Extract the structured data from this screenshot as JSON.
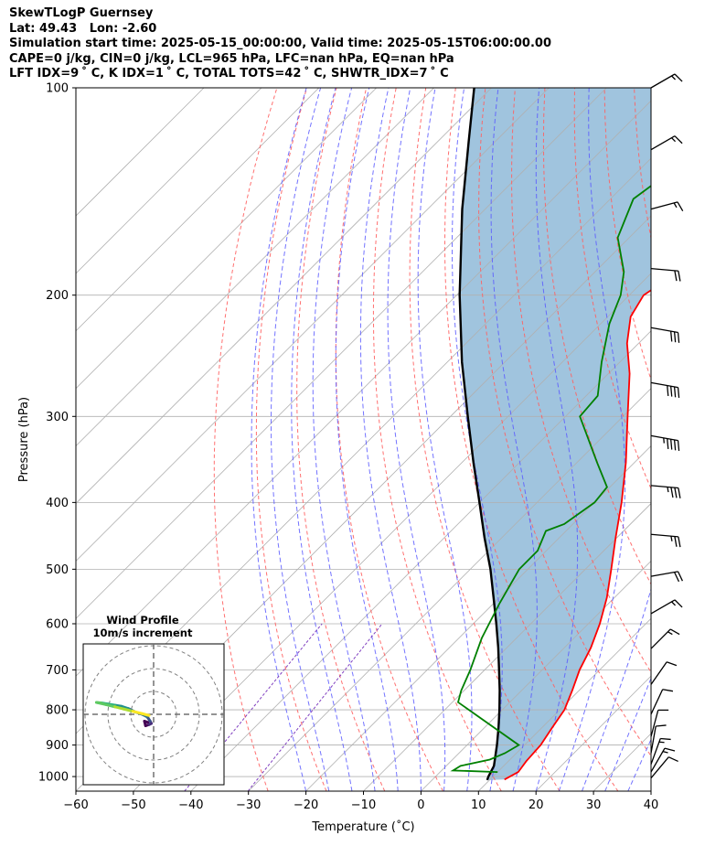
{
  "header": {
    "line1": "SkewTLogP Guernsey",
    "line2": "Lat: 49.43   Lon: -2.60",
    "line3": "Simulation start time: 2025-05-15_00:00:00, Valid time: 2025-05-15T06:00:00.00",
    "line4": "CAPE=0 j/kg, CIN=0 j/kg, LCL=965 hPa, LFC=nan hPa, EQ=nan hPa",
    "line5": "LFT IDX=9 ˚ C, K IDX=1 ˚ C, TOTAL TOTS=42 ˚ C, SHWTR_IDX=7 ˚ C"
  },
  "chart_data": {
    "type": "skew-t log-p",
    "xlabel": "Temperature (˚C)",
    "ylabel": "Pressure (hPa)",
    "x_ticks": [
      -60,
      -50,
      -40,
      -30,
      -20,
      -10,
      0,
      10,
      20,
      30,
      40
    ],
    "x_tick_labels": [
      "−60",
      "−50",
      "−40",
      "−30",
      "−20",
      "−10",
      "0",
      "10",
      "20",
      "30",
      "40"
    ],
    "y_ticks": [
      100,
      200,
      300,
      400,
      500,
      600,
      700,
      800,
      900,
      1000
    ],
    "xlim": [
      -60,
      40
    ],
    "ylim": [
      1050,
      100
    ],
    "y_scale": "log",
    "grid": true,
    "colors": {
      "temperature": "#ff0000",
      "dewpoint": "#008000",
      "parcel": "#000000",
      "cape_shading": "#a0c4de",
      "dry_adiabats": "#ff6060",
      "moist_adiabats": "#5a5aff",
      "mixing_ratio": "#8040c0",
      "isotherms": "#b0b0b0"
    },
    "temperature_profile": [
      {
        "p": 1010,
        "t": 12.5
      },
      {
        "p": 985,
        "t": 13.6
      },
      {
        "p": 950,
        "t": 13.1
      },
      {
        "p": 900,
        "t": 12.8
      },
      {
        "p": 850,
        "t": 11.8
      },
      {
        "p": 800,
        "t": 10.8
      },
      {
        "p": 750,
        "t": 8.8
      },
      {
        "p": 700,
        "t": 6.5
      },
      {
        "p": 650,
        "t": 4.6
      },
      {
        "p": 600,
        "t": 2.0
      },
      {
        "p": 550,
        "t": -1.3
      },
      {
        "p": 500,
        "t": -5.5
      },
      {
        "p": 450,
        "t": -10.2
      },
      {
        "p": 400,
        "t": -15.3
      },
      {
        "p": 350,
        "t": -21.5
      },
      {
        "p": 300,
        "t": -29.2
      },
      {
        "p": 260,
        "t": -36.3
      },
      {
        "p": 235,
        "t": -42.0
      },
      {
        "p": 215,
        "t": -46.0
      },
      {
        "p": 200,
        "t": -47.5
      },
      {
        "p": 185,
        "t": -45.5
      },
      {
        "p": 170,
        "t": -40.8
      },
      {
        "p": 155,
        "t": -36.5
      },
      {
        "p": 140,
        "t": -33.2
      },
      {
        "p": 125,
        "t": -30.0
      },
      {
        "p": 112,
        "t": -27.8
      },
      {
        "p": 100,
        "t": -27.0
      }
    ],
    "dewpoint_profile": [
      {
        "p": 985,
        "t": 10.0
      },
      {
        "p": 980,
        "t": 2.0
      },
      {
        "p": 965,
        "t": 2.5
      },
      {
        "p": 945,
        "t": 6.5
      },
      {
        "p": 925,
        "t": 8.0
      },
      {
        "p": 900,
        "t": 9.0
      },
      {
        "p": 780,
        "t": -9.0
      },
      {
        "p": 750,
        "t": -10.5
      },
      {
        "p": 700,
        "t": -12.5
      },
      {
        "p": 630,
        "t": -16.0
      },
      {
        "p": 560,
        "t": -19.0
      },
      {
        "p": 500,
        "t": -21.5
      },
      {
        "p": 470,
        "t": -21.5
      },
      {
        "p": 440,
        "t": -23.5
      },
      {
        "p": 430,
        "t": -21.5
      },
      {
        "p": 400,
        "t": -20.0
      },
      {
        "p": 380,
        "t": -20.5
      },
      {
        "p": 350,
        "t": -26.5
      },
      {
        "p": 300,
        "t": -37.5
      },
      {
        "p": 280,
        "t": -38.0
      },
      {
        "p": 250,
        "t": -43.2
      },
      {
        "p": 220,
        "t": -48.5
      },
      {
        "p": 200,
        "t": -51.5
      },
      {
        "p": 185,
        "t": -55.0
      },
      {
        "p": 165,
        "t": -62.0
      },
      {
        "p": 145,
        "t": -66.0
      },
      {
        "p": 130,
        "t": -64.0
      },
      {
        "p": 115,
        "t": -63.5
      },
      {
        "p": 100,
        "t": -64.0
      }
    ],
    "parcel_profile": [
      {
        "p": 1012,
        "t": 9.6
      },
      {
        "p": 1000,
        "t": 9.2
      },
      {
        "p": 965,
        "t": 8.3
      },
      {
        "p": 900,
        "t": 5.2
      },
      {
        "p": 850,
        "t": 2.5
      },
      {
        "p": 800,
        "t": -0.5
      },
      {
        "p": 750,
        "t": -3.8
      },
      {
        "p": 700,
        "t": -7.5
      },
      {
        "p": 650,
        "t": -11.5
      },
      {
        "p": 600,
        "t": -16.0
      },
      {
        "p": 550,
        "t": -21.0
      },
      {
        "p": 500,
        "t": -26.5
      },
      {
        "p": 450,
        "t": -33.0
      },
      {
        "p": 400,
        "t": -40.0
      },
      {
        "p": 350,
        "t": -48.0
      },
      {
        "p": 300,
        "t": -57.0
      },
      {
        "p": 250,
        "t": -67.5
      },
      {
        "p": 200,
        "t": -79.5
      },
      {
        "p": 150,
        "t": -94.0
      },
      {
        "p": 120,
        "t": -104.5
      },
      {
        "p": 100,
        "t": -113.0
      }
    ],
    "wind_barbs": [
      {
        "p": 100,
        "speed_kt": 15,
        "dir": 60
      },
      {
        "p": 123,
        "speed_kt": 15,
        "dir": 60
      },
      {
        "p": 150,
        "speed_kt": 15,
        "dir": 75
      },
      {
        "p": 183,
        "speed_kt": 20,
        "dir": 95
      },
      {
        "p": 223,
        "speed_kt": 30,
        "dir": 100
      },
      {
        "p": 268,
        "speed_kt": 40,
        "dir": 100
      },
      {
        "p": 320,
        "speed_kt": 45,
        "dir": 100
      },
      {
        "p": 378,
        "speed_kt": 35,
        "dir": 95
      },
      {
        "p": 445,
        "speed_kt": 25,
        "dir": 95
      },
      {
        "p": 512,
        "speed_kt": 20,
        "dir": 80
      },
      {
        "p": 580,
        "speed_kt": 15,
        "dir": 60
      },
      {
        "p": 652,
        "speed_kt": 15,
        "dir": 45
      },
      {
        "p": 735,
        "speed_kt": 10,
        "dir": 35
      },
      {
        "p": 812,
        "speed_kt": 10,
        "dir": 25
      },
      {
        "p": 875,
        "speed_kt": 10,
        "dir": 15
      },
      {
        "p": 925,
        "speed_kt": 10,
        "dir": 10
      },
      {
        "p": 960,
        "speed_kt": 15,
        "dir": 20
      },
      {
        "p": 985,
        "speed_kt": 15,
        "dir": 30
      },
      {
        "p": 1005,
        "speed_kt": 10,
        "dir": 40
      }
    ],
    "hodograph": {
      "title_line1": "Wind Profile",
      "title_line2": "10m/s increment",
      "rings_ms": [
        10,
        20,
        30
      ],
      "colormap": "viridis",
      "points": [
        {
          "u": -2.5,
          "v": -3.5
        },
        {
          "u": -4.0,
          "v": -3.0
        },
        {
          "u": -3.5,
          "v": -5.0
        },
        {
          "u": -2.0,
          "v": -4.5
        },
        {
          "u": -1.0,
          "v": -4.0
        },
        {
          "u": -1.5,
          "v": -3.0
        },
        {
          "u": -2.5,
          "v": -1.5
        },
        {
          "u": -3.0,
          "v": -1.0
        },
        {
          "u": -5.0,
          "v": 0.0
        },
        {
          "u": -8.0,
          "v": 1.0
        },
        {
          "u": -11.0,
          "v": 2.5
        },
        {
          "u": -14.0,
          "v": 3.5
        },
        {
          "u": -17.0,
          "v": 4.0
        },
        {
          "u": -20.0,
          "v": 4.5
        },
        {
          "u": -23.0,
          "v": 5.0
        },
        {
          "u": -25.0,
          "v": 5.2
        },
        {
          "u": -21.0,
          "v": 4.3
        },
        {
          "u": -17.0,
          "v": 3.3
        },
        {
          "u": -13.0,
          "v": 2.3
        },
        {
          "u": -9.0,
          "v": 1.3
        },
        {
          "u": -5.0,
          "v": 0.3
        },
        {
          "u": -2.0,
          "v": -0.5
        }
      ]
    }
  }
}
